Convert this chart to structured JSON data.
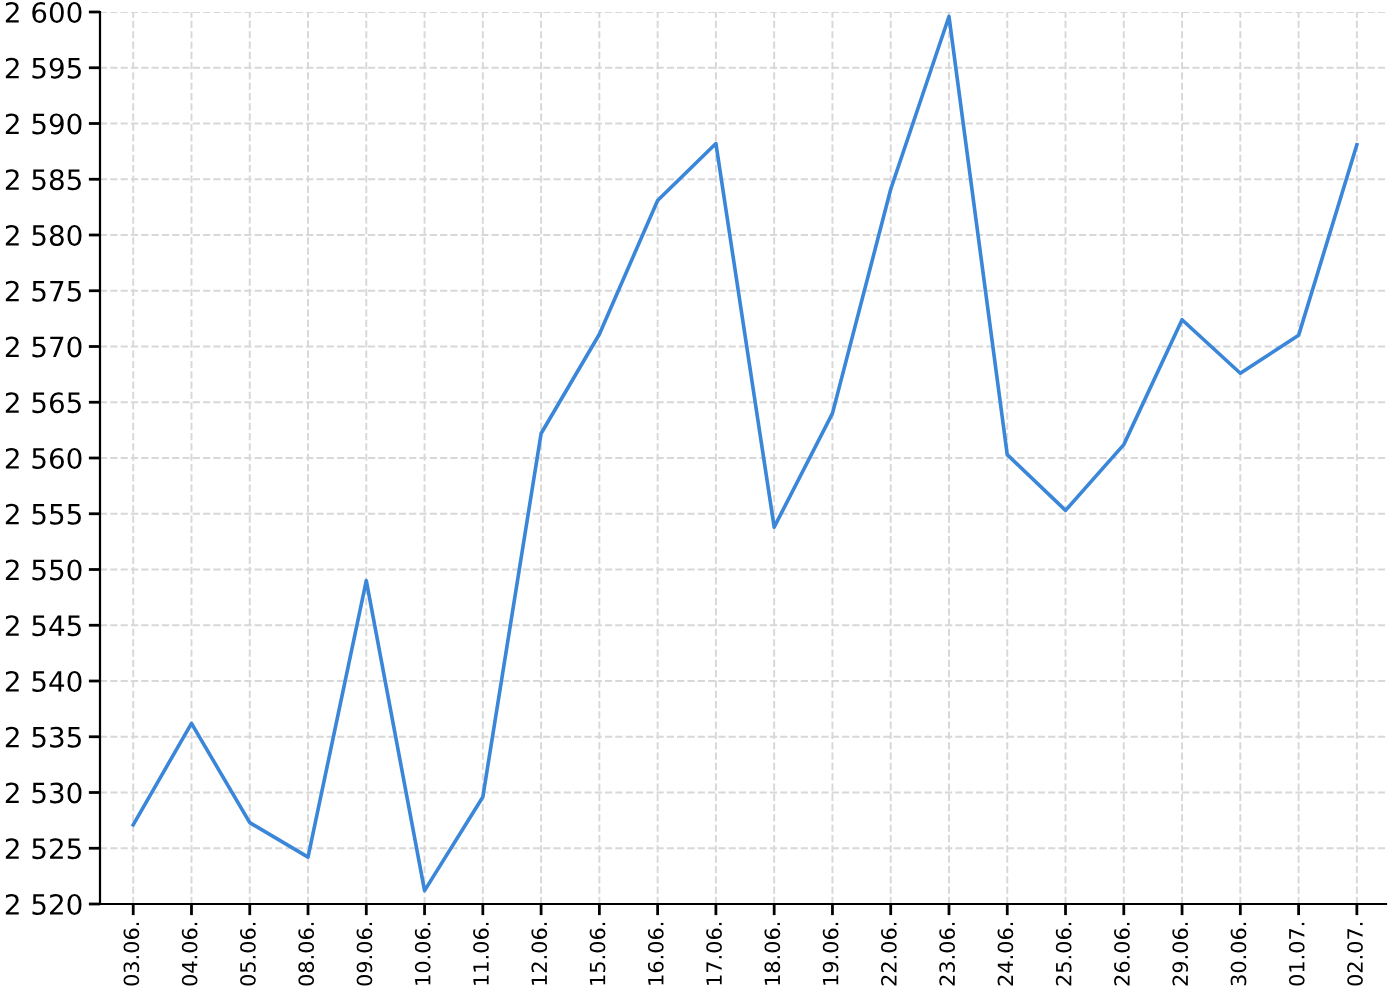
{
  "chart_data": {
    "type": "line",
    "categories": [
      "03.06.",
      "04.06.",
      "05.06.",
      "08.06.",
      "09.06.",
      "10.06.",
      "11.06.",
      "12.06.",
      "15.06.",
      "16.06.",
      "17.06.",
      "18.06.",
      "19.06.",
      "22.06.",
      "23.06.",
      "24.06.",
      "25.06.",
      "26.06.",
      "29.06.",
      "30.06.",
      "01.07.",
      "02.07."
    ],
    "series": [
      {
        "color": "#3a86d8",
        "values": [
          2527.1,
          2536.2,
          2527.3,
          2524.2,
          2549.0,
          2521.2,
          2529.6,
          2562.2,
          2571.1,
          2583.1,
          2588.2,
          2553.8,
          2564.0,
          2584.1,
          2599.6,
          2560.3,
          2555.3,
          2561.2,
          2572.4,
          2567.6,
          2571.0,
          2588.1
        ]
      }
    ],
    "ylim": [
      2520,
      2600
    ],
    "yticks": [
      {
        "value": 2520,
        "label": "2 520"
      },
      {
        "value": 2525,
        "label": "2 525"
      },
      {
        "value": 2530,
        "label": "2 530"
      },
      {
        "value": 2535,
        "label": "2 535"
      },
      {
        "value": 2540,
        "label": "2 540"
      },
      {
        "value": 2545,
        "label": "2 545"
      },
      {
        "value": 2550,
        "label": "2 550"
      },
      {
        "value": 2555,
        "label": "2 555"
      },
      {
        "value": 2560,
        "label": "2 560"
      },
      {
        "value": 2565,
        "label": "2 565"
      },
      {
        "value": 2570,
        "label": "2 570"
      },
      {
        "value": 2575,
        "label": "2 575"
      },
      {
        "value": 2580,
        "label": "2 580"
      },
      {
        "value": 2585,
        "label": "2 585"
      },
      {
        "value": 2590,
        "label": "2 590"
      },
      {
        "value": 2595,
        "label": "2 595"
      },
      {
        "value": 2600,
        "label": "2 600"
      }
    ],
    "grid": true,
    "legend": false,
    "marker": "none",
    "line_style": "solid"
  }
}
